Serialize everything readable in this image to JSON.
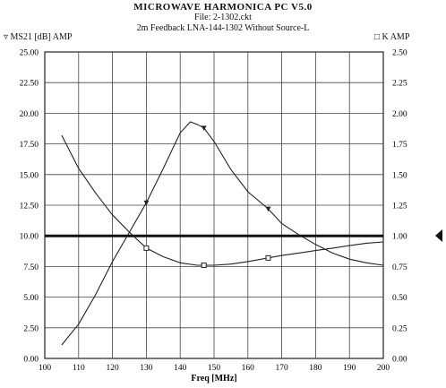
{
  "header": {
    "title": "MICROWAVE HARMONICA PC V5.0",
    "file": "File: 2-1302.ckt",
    "subtitle": "2m Feedback LNA-144-1302 Without Source-L"
  },
  "legend": {
    "left": "▿ MS21 [dB] AMP",
    "right": "□ K AMP"
  },
  "chart_data": {
    "type": "line",
    "title": "2m Feedback LNA-144-1302 Without Source-L",
    "xlabel": "Freq [MHz]",
    "x_ticks": [
      "100",
      "110",
      "120",
      "130",
      "140",
      "150",
      "160",
      "170",
      "180",
      "190",
      "200"
    ],
    "y_left_ticks": [
      "0.00",
      "2.50",
      "5.00",
      "7.50",
      "10.00",
      "12.50",
      "15.00",
      "17.50",
      "20.00",
      "22.50",
      "25.00"
    ],
    "y_right_ticks": [
      "0.00",
      "0.25",
      "0.50",
      "0.75",
      "1.00",
      "1.25",
      "1.50",
      "1.75",
      "2.00",
      "2.25",
      "2.50"
    ],
    "xlim": [
      100,
      200
    ],
    "ylim_left": [
      0,
      25
    ],
    "ylim_right": [
      0,
      2.5
    ],
    "grid": true,
    "reference_line": {
      "axis": "right",
      "value": 1.0
    },
    "series": [
      {
        "name": "MS21 [dB] AMP",
        "axis": "left",
        "marker": "triangle-down",
        "marker_x": [
          130,
          147,
          166
        ],
        "x": [
          105,
          110,
          115,
          120,
          125,
          130,
          135,
          140,
          143,
          145,
          147,
          150,
          155,
          160,
          166,
          170,
          175,
          180,
          185,
          190,
          195,
          200
        ],
        "values": [
          1.1,
          2.8,
          5.2,
          7.9,
          10.3,
          12.7,
          15.5,
          18.4,
          19.3,
          19.1,
          18.8,
          17.7,
          15.4,
          13.6,
          12.2,
          11.0,
          10.1,
          9.3,
          8.6,
          8.1,
          7.8,
          7.6
        ]
      },
      {
        "name": "K AMP",
        "axis": "right",
        "marker": "square",
        "marker_x": [
          130,
          147,
          166
        ],
        "x": [
          105,
          110,
          115,
          120,
          125,
          130,
          135,
          140,
          145,
          150,
          155,
          160,
          166,
          170,
          175,
          180,
          185,
          190,
          195,
          200
        ],
        "values": [
          1.82,
          1.55,
          1.35,
          1.17,
          1.03,
          0.9,
          0.83,
          0.78,
          0.76,
          0.76,
          0.77,
          0.79,
          0.82,
          0.84,
          0.86,
          0.88,
          0.9,
          0.92,
          0.94,
          0.95
        ]
      }
    ]
  }
}
